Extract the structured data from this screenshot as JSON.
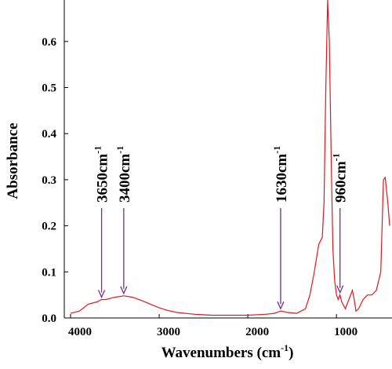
{
  "chart_data": {
    "type": "line",
    "x_label": {
      "text": "Wavenumbers (cm",
      "sup": "-1",
      "tail": ")"
    },
    "y_label": "Absorbance",
    "x": [
      4000,
      3900,
      3800,
      3700,
      3650,
      3600,
      3500,
      3400,
      3300,
      3200,
      3100,
      3000,
      2900,
      2800,
      2600,
      2400,
      2200,
      2000,
      1800,
      1700,
      1630,
      1550,
      1450,
      1350,
      1300,
      1250,
      1200,
      1160,
      1140,
      1120,
      1100,
      1080,
      1060,
      1040,
      1020,
      1000,
      980,
      960,
      940,
      900,
      860,
      820,
      800,
      780,
      750,
      700,
      650,
      600,
      550,
      500,
      470,
      450,
      420,
      400
    ],
    "values": [
      0.01,
      0.015,
      0.03,
      0.035,
      0.04,
      0.04,
      0.045,
      0.048,
      0.045,
      0.038,
      0.03,
      0.022,
      0.016,
      0.012,
      0.008,
      0.006,
      0.006,
      0.006,
      0.008,
      0.01,
      0.015,
      0.012,
      0.01,
      0.02,
      0.05,
      0.1,
      0.16,
      0.175,
      0.25,
      0.5,
      0.69,
      0.6,
      0.35,
      0.15,
      0.08,
      0.05,
      0.04,
      0.05,
      0.035,
      0.02,
      0.04,
      0.06,
      0.04,
      0.015,
      0.02,
      0.04,
      0.05,
      0.05,
      0.06,
      0.1,
      0.3,
      0.305,
      0.25,
      0.2
    ],
    "color": "#e8141c",
    "xlim": [
      4000,
      400
    ],
    "xticks": [
      4000,
      3000,
      2000,
      1000
    ],
    "ylim": [
      0,
      0.69
    ],
    "yticks": [
      {
        "value": 0,
        "label": "0.0"
      },
      0.1,
      0.2,
      0.3,
      0.4,
      0.5,
      0.6
    ],
    "annotations": [
      {
        "text": "3650cm",
        "sup": "-1",
        "x": 3650
      },
      {
        "text": "3400cm",
        "sup": "-1",
        "x": 3400
      },
      {
        "text": "1630cm",
        "sup": "-1",
        "x": 1630
      },
      {
        "text": "960cm",
        "sup": "-1",
        "x": 960
      }
    ],
    "arrow_color": "#7b2a8e"
  }
}
